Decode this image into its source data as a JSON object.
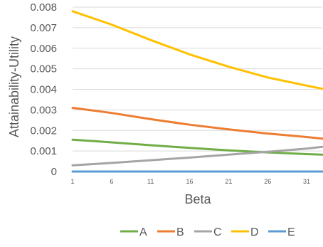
{
  "chart_data": {
    "type": "line",
    "xlabel": "Beta",
    "ylabel": "Attainability-Utility",
    "x_range": [
      1,
      33
    ],
    "ylim": [
      0,
      0.008
    ],
    "x_ticks": [
      "1",
      "6",
      "11",
      "16",
      "21",
      "26",
      "31"
    ],
    "y_ticks": [
      "0",
      "0.001",
      "0.002",
      "0.003",
      "0.004",
      "0.005",
      "0.006",
      "0.007",
      "0.008"
    ],
    "grid": "horizontal",
    "legend_position": "bottom",
    "series": [
      {
        "name": "A",
        "color": "#70AD47",
        "x": [
          1,
          6,
          11,
          16,
          21,
          26,
          31,
          33
        ],
        "values": [
          0.00155,
          0.00142,
          0.00128,
          0.00115,
          0.00103,
          0.00093,
          0.00085,
          0.00082
        ]
      },
      {
        "name": "B",
        "color": "#ED7D31",
        "x": [
          1,
          6,
          11,
          16,
          21,
          26,
          31,
          33
        ],
        "values": [
          0.0031,
          0.00285,
          0.00255,
          0.00228,
          0.00205,
          0.00185,
          0.00168,
          0.0016
        ]
      },
      {
        "name": "C",
        "color": "#A5A5A5",
        "x": [
          1,
          6,
          11,
          16,
          21,
          26,
          31,
          33
        ],
        "values": [
          0.0003,
          0.00042,
          0.00055,
          0.00068,
          0.00082,
          0.00096,
          0.00112,
          0.0012
        ]
      },
      {
        "name": "D",
        "color": "#FFC000",
        "x": [
          1,
          6,
          11,
          16,
          21,
          26,
          31,
          33
        ],
        "values": [
          0.0078,
          0.00715,
          0.0064,
          0.0057,
          0.0051,
          0.00458,
          0.00418,
          0.00403
        ]
      },
      {
        "name": "E",
        "color": "#5B9BD5",
        "x": [
          1,
          6,
          11,
          16,
          21,
          26,
          31,
          33
        ],
        "values": [
          0,
          0,
          0,
          0,
          0,
          0,
          0,
          0
        ]
      }
    ]
  }
}
